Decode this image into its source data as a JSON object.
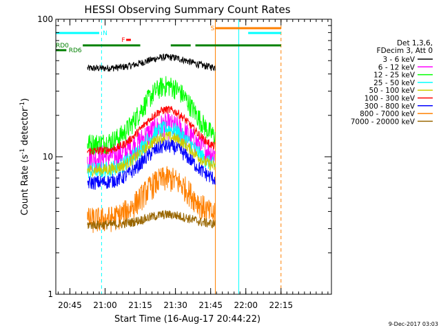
{
  "chart_data": {
    "type": "line",
    "title": "HESSI Observing Summary Count Rates",
    "xlabel": "Start Time (16-Aug-17 20:44:22)",
    "ylabel_main": "Count Rate (s",
    "ylabel_sup": "-1",
    "ylabel_tail": " detector",
    "ylabel_end": ")",
    "yscale": "log",
    "ylim": [
      1,
      100
    ],
    "y_ticks": [
      {
        "value": 1,
        "label": "1"
      },
      {
        "value": 10,
        "label": "10"
      },
      {
        "value": 100,
        "label": "100"
      }
    ],
    "xlim_min": [
      -12,
      223
    ],
    "x_ticks": [
      {
        "min": 0,
        "label": "20:45"
      },
      {
        "min": 30,
        "label": "21:00"
      },
      {
        "min": 60,
        "label": "21:15"
      },
      {
        "min": 90,
        "label": "21:30"
      },
      {
        "min": 120,
        "label": "21:45"
      },
      {
        "min": 150,
        "label": "22:00"
      },
      {
        "min": 180,
        "label": "22:15"
      }
    ],
    "data_window_min": [
      15,
      124
    ],
    "peak_min": 83,
    "legend": {
      "header": [
        "Det 1,3,6,",
        "FDecim 3, Att 0"
      ],
      "placement": "right"
    },
    "series": [
      {
        "name": "3 - 6 keV",
        "color": "#000000",
        "base": 44,
        "peak": 53,
        "noise": 0.06
      },
      {
        "name": "6 - 12 keV",
        "color": "#ff00ff",
        "base": 10,
        "peak": 17,
        "noise": 0.22
      },
      {
        "name": "12 - 25 keV",
        "color": "#00ff00",
        "base": 12.5,
        "peak": 33,
        "noise": 0.18
      },
      {
        "name": "25 - 50 keV",
        "color": "#00ffff",
        "base": 8,
        "peak": 16,
        "noise": 0.14
      },
      {
        "name": "50 - 100 keV",
        "color": "#cccc00",
        "base": 8,
        "peak": 14,
        "noise": 0.1
      },
      {
        "name": "100 - 300 keV",
        "color": "#ff0000",
        "base": 11,
        "peak": 22,
        "noise": 0.07
      },
      {
        "name": "300 - 800 keV",
        "color": "#0000ff",
        "base": 6.5,
        "peak": 12,
        "noise": 0.12
      },
      {
        "name": "800 - 7000 keV",
        "color": "#ff8000",
        "base": 3.5,
        "peak": 7,
        "noise": 0.22
      },
      {
        "name": "7000 - 20000 keV",
        "color": "#996600",
        "base": 3.2,
        "peak": 3.8,
        "noise": 0.08
      }
    ],
    "flag_bars": [
      {
        "label": "N",
        "color": "#00ffff",
        "y": 48,
        "segments": [
          [
            -12,
            25
          ],
          [
            152,
            180
          ]
        ],
        "label_at": 28
      },
      {
        "label": "F",
        "color": "#ff0000",
        "y": 58,
        "segments": [
          [
            48,
            52
          ]
        ],
        "label_at": 44
      },
      {
        "label": "S",
        "color": "#ff8000",
        "y": 41,
        "segments": [
          [
            124,
            180
          ]
        ],
        "label_at": 120
      },
      {
        "label": "RD0",
        "color": "#008000",
        "y": 66,
        "segments": [
          [
            11,
            60
          ],
          [
            86,
            103
          ],
          [
            107,
            180
          ]
        ],
        "label_at": -12
      },
      {
        "label": "RD6",
        "color": "#008000",
        "y": 73,
        "segments": [
          [
            -12,
            -3
          ]
        ],
        "label_at": -1
      }
    ],
    "vertical_lines": [
      {
        "min": -12,
        "color": "#00ffff",
        "dash": false
      },
      {
        "min": 27,
        "color": "#00ffff",
        "dash": true
      },
      {
        "min": 124,
        "color": "#ff8000",
        "dash": false
      },
      {
        "min": 144,
        "color": "#00ffff",
        "dash": false
      },
      {
        "min": 180,
        "color": "#ff8000",
        "dash": true
      }
    ],
    "timestamp": "9-Dec-2017 03:03"
  }
}
